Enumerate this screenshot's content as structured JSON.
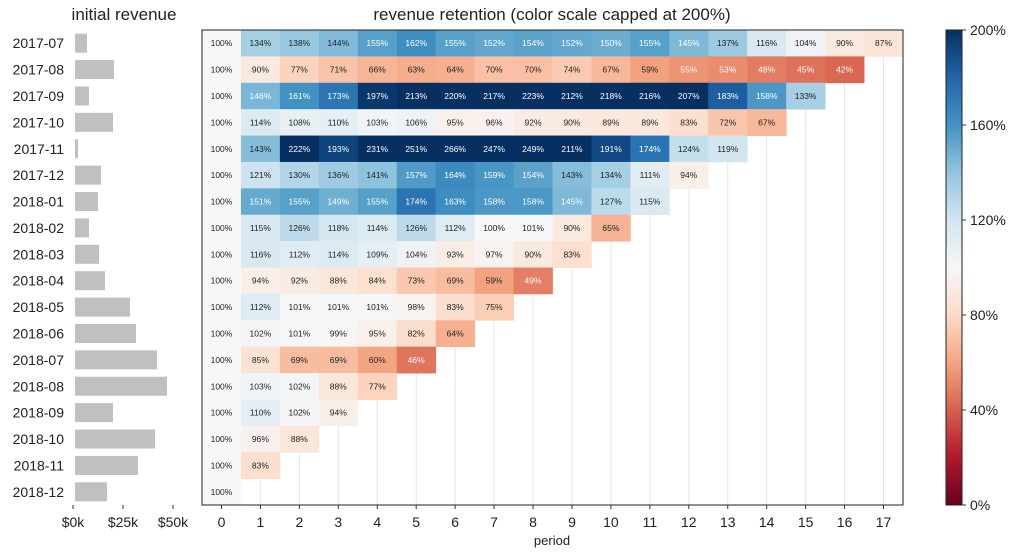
{
  "chart_data": [
    {
      "type": "bar",
      "orientation": "horizontal",
      "title": "initial revenue",
      "categories": [
        "2017-07",
        "2017-08",
        "2017-09",
        "2017-10",
        "2017-11",
        "2017-12",
        "2018-01",
        "2018-02",
        "2018-03",
        "2018-04",
        "2018-05",
        "2018-06",
        "2018-07",
        "2018-08",
        "2018-09",
        "2018-10",
        "2018-11",
        "2018-12"
      ],
      "values": [
        6000,
        19500,
        7000,
        19000,
        1500,
        13000,
        11500,
        7000,
        12000,
        15000,
        27500,
        30500,
        41000,
        46000,
        19000,
        40000,
        31500,
        16000
      ],
      "xlim": [
        0,
        50000
      ],
      "xticks": [
        "$0k",
        "$25k",
        "$50k"
      ],
      "bar_color": "#c0c0c0"
    },
    {
      "type": "heatmap",
      "title": "revenue retention (color scale capped at 200%)",
      "xlabel": "period",
      "x": [
        0,
        1,
        2,
        3,
        4,
        5,
        6,
        7,
        8,
        9,
        10,
        11,
        12,
        13,
        14,
        15,
        16,
        17
      ],
      "rows": [
        "2017-07",
        "2017-08",
        "2017-09",
        "2017-10",
        "2017-11",
        "2017-12",
        "2018-01",
        "2018-02",
        "2018-03",
        "2018-04",
        "2018-05",
        "2018-06",
        "2018-07",
        "2018-08",
        "2018-09",
        "2018-10",
        "2018-11",
        "2018-12"
      ],
      "values": [
        [
          100,
          134,
          138,
          144,
          155,
          162,
          155,
          152,
          154,
          152,
          150,
          155,
          145,
          137,
          116,
          104,
          90,
          87
        ],
        [
          100,
          90,
          77,
          71,
          66,
          63,
          64,
          70,
          70,
          74,
          67,
          59,
          55,
          53,
          48,
          45,
          42
        ],
        [
          100,
          146,
          161,
          173,
          197,
          213,
          220,
          217,
          223,
          212,
          218,
          216,
          207,
          183,
          158,
          133
        ],
        [
          100,
          114,
          108,
          110,
          103,
          106,
          95,
          96,
          92,
          90,
          89,
          89,
          83,
          72,
          67
        ],
        [
          100,
          143,
          222,
          193,
          231,
          251,
          266,
          247,
          249,
          211,
          191,
          174,
          124,
          119
        ],
        [
          100,
          121,
          130,
          136,
          141,
          157,
          164,
          159,
          154,
          143,
          134,
          111,
          94
        ],
        [
          100,
          151,
          155,
          149,
          155,
          174,
          163,
          158,
          158,
          145,
          127,
          115
        ],
        [
          100,
          115,
          126,
          118,
          114,
          126,
          112,
          100,
          101,
          90,
          65
        ],
        [
          100,
          116,
          112,
          114,
          109,
          104,
          93,
          97,
          90,
          83
        ],
        [
          100,
          94,
          92,
          88,
          84,
          73,
          69,
          59,
          49
        ],
        [
          100,
          112,
          101,
          101,
          101,
          98,
          83,
          75
        ],
        [
          100,
          102,
          101,
          99,
          95,
          82,
          64
        ],
        [
          100,
          85,
          69,
          69,
          60,
          46
        ],
        [
          100,
          103,
          102,
          88,
          77
        ],
        [
          100,
          110,
          102,
          94
        ],
        [
          100,
          96,
          88
        ],
        [
          100,
          83
        ],
        [
          100
        ]
      ],
      "value_suffix": "%",
      "colorbar": {
        "range": [
          0,
          200
        ],
        "ticks": [
          "0%",
          "40%",
          "80%",
          "120%",
          "160%",
          "200%"
        ],
        "colors": [
          "#67001f",
          "#b2182b",
          "#d6604d",
          "#f4a582",
          "#fddbc7",
          "#f7f7f7",
          "#d1e5f0",
          "#92c5de",
          "#4393c3",
          "#2166ac",
          "#053061"
        ]
      }
    }
  ]
}
